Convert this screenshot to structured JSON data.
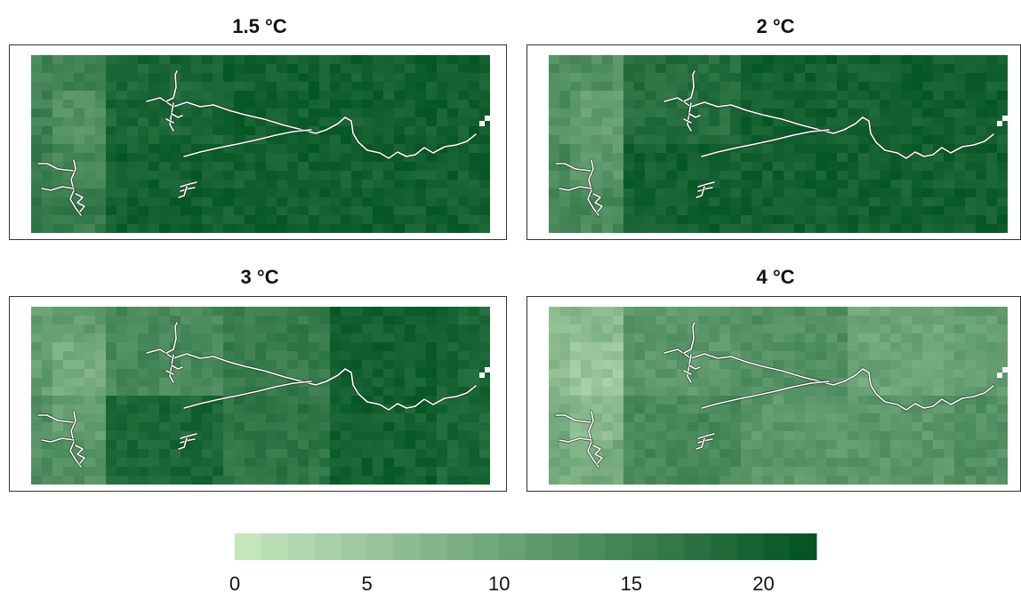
{
  "chart_data": {
    "type": "heatmap",
    "panels": [
      {
        "title": "1.5 °C",
        "coarse": [
          [
            15,
            19,
            20,
            20,
            20
          ],
          [
            16,
            20,
            20,
            20,
            20
          ]
        ]
      },
      {
        "title": "2 °C",
        "coarse": [
          [
            13,
            18,
            20,
            20,
            20
          ],
          [
            14,
            20,
            20,
            20,
            20
          ]
        ]
      },
      {
        "title": "3 °C",
        "coarse": [
          [
            11,
            14,
            16,
            20,
            19
          ],
          [
            13,
            19,
            17,
            20,
            19
          ]
        ]
      },
      {
        "title": "4 °C",
        "coarse": [
          [
            7,
            12,
            13,
            10,
            11
          ],
          [
            9,
            14,
            12,
            12,
            13
          ]
        ]
      }
    ],
    "colorbar": {
      "min": 0,
      "max": 22,
      "steps": 22,
      "ticks": [
        "0",
        "5",
        "10",
        "15",
        "20"
      ],
      "colors": [
        "#c8e9c0",
        "#005221"
      ]
    }
  }
}
